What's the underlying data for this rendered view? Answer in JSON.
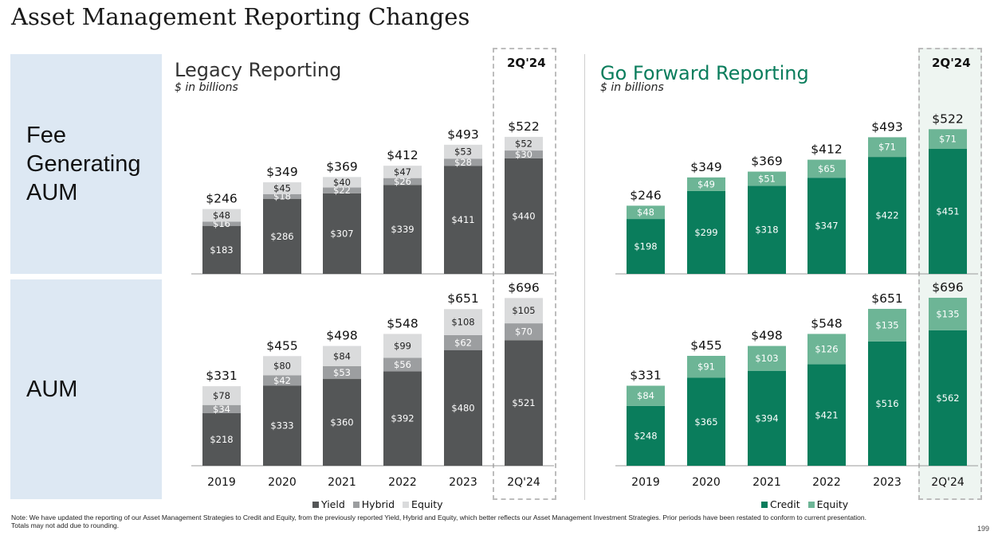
{
  "title": "Asset Management Reporting Changes",
  "row_labels": {
    "fee": "Fee\nGenerating\nAUM",
    "aum": "AUM"
  },
  "legacy": {
    "title": "Legacy Reporting",
    "subtitle": "$ in billions"
  },
  "forward": {
    "title": "Go Forward Reporting",
    "subtitle": "$ in billions"
  },
  "highlight_label": "2Q'24",
  "legend_legacy": [
    {
      "name": "Yield",
      "color": "#545657"
    },
    {
      "name": "Hybrid",
      "color": "#9c9ea0"
    },
    {
      "name": "Equity",
      "color": "#dadbdc"
    }
  ],
  "legend_forward": [
    {
      "name": "Credit",
      "color": "#0a7d5c"
    },
    {
      "name": "Equity",
      "color": "#6db596"
    }
  ],
  "note": "Note: We have updated the reporting of our Asset Management Strategies to Credit and Equity, from the previously reported Yield, Hybrid and Equity, which better reflects our Asset Management Investment Strategies. Prior periods have been restated to conform to current presentation.\nTotals may not add due to rounding.",
  "page_number": "199",
  "chart_data": [
    {
      "type": "bar",
      "stacked": true,
      "id": "legacy-fee",
      "title": "Legacy Reporting",
      "subtitle": "$ in billions",
      "row": "Fee Generating AUM",
      "categories": [
        "2019",
        "2020",
        "2021",
        "2022",
        "2023",
        "2Q'24"
      ],
      "series": [
        {
          "name": "Yield",
          "color": "#545657",
          "values": [
            183,
            286,
            307,
            339,
            411,
            440
          ],
          "labels": [
            "$183",
            "$286",
            "$307",
            "$339",
            "$411",
            "$440"
          ]
        },
        {
          "name": "Hybrid",
          "color": "#9c9ea0",
          "values": [
            16,
            18,
            22,
            26,
            28,
            30
          ],
          "labels": [
            "$16",
            "$18",
            "$22",
            "$26",
            "$28",
            "$30"
          ]
        },
        {
          "name": "Equity",
          "color": "#dadbdc",
          "values": [
            48,
            45,
            40,
            47,
            53,
            52
          ],
          "labels": [
            "$48",
            "$45",
            "$40",
            "$47",
            "$53",
            "$52"
          ]
        }
      ],
      "totals": [
        "$246",
        "$349",
        "$369",
        "$412",
        "$493",
        "$522"
      ],
      "show_xaxis": false
    },
    {
      "type": "bar",
      "stacked": true,
      "id": "legacy-aum",
      "title": "Legacy Reporting",
      "subtitle": "$ in billions",
      "row": "AUM",
      "categories": [
        "2019",
        "2020",
        "2021",
        "2022",
        "2023",
        "2Q'24"
      ],
      "series": [
        {
          "name": "Yield",
          "color": "#545657",
          "values": [
            218,
            333,
            360,
            392,
            480,
            521
          ],
          "labels": [
            "$218",
            "$333",
            "$360",
            "$392",
            "$480",
            "$521"
          ]
        },
        {
          "name": "Hybrid",
          "color": "#9c9ea0",
          "values": [
            34,
            42,
            53,
            56,
            62,
            70
          ],
          "labels": [
            "$34",
            "$42",
            "$53",
            "$56",
            "$62",
            "$70"
          ]
        },
        {
          "name": "Equity",
          "color": "#dadbdc",
          "values": [
            78,
            80,
            84,
            99,
            108,
            105
          ],
          "labels": [
            "$78",
            "$80",
            "$84",
            "$99",
            "$108",
            "$105"
          ]
        }
      ],
      "totals": [
        "$331",
        "$455",
        "$498",
        "$548",
        "$651",
        "$696"
      ],
      "show_xaxis": true
    },
    {
      "type": "bar",
      "stacked": true,
      "id": "forward-fee",
      "title": "Go Forward Reporting",
      "subtitle": "$ in billions",
      "row": "Fee Generating AUM",
      "categories": [
        "2019",
        "2020",
        "2021",
        "2022",
        "2023",
        "2Q'24"
      ],
      "series": [
        {
          "name": "Credit",
          "color": "#0a7d5c",
          "values": [
            198,
            299,
            318,
            347,
            422,
            451
          ],
          "labels": [
            "$198",
            "$299",
            "$318",
            "$347",
            "$422",
            "$451"
          ]
        },
        {
          "name": "Equity",
          "color": "#6db596",
          "values": [
            48,
            49,
            51,
            65,
            71,
            71
          ],
          "labels": [
            "$48",
            "$49",
            "$51",
            "$65",
            "$71",
            "$71"
          ]
        }
      ],
      "totals": [
        "$246",
        "$349",
        "$369",
        "$412",
        "$493",
        "$522"
      ],
      "show_xaxis": false
    },
    {
      "type": "bar",
      "stacked": true,
      "id": "forward-aum",
      "title": "Go Forward Reporting",
      "subtitle": "$ in billions",
      "row": "AUM",
      "categories": [
        "2019",
        "2020",
        "2021",
        "2022",
        "2023",
        "2Q'24"
      ],
      "series": [
        {
          "name": "Credit",
          "color": "#0a7d5c",
          "values": [
            248,
            365,
            394,
            421,
            516,
            562
          ],
          "labels": [
            "$248",
            "$365",
            "$394",
            "$421",
            "$516",
            "$562"
          ]
        },
        {
          "name": "Equity",
          "color": "#6db596",
          "values": [
            84,
            91,
            103,
            126,
            135,
            135
          ],
          "labels": [
            "$84",
            "$91",
            "$103",
            "$126",
            "$135",
            "$135"
          ]
        }
      ],
      "totals": [
        "$331",
        "$455",
        "$498",
        "$548",
        "$651",
        "$696"
      ],
      "show_xaxis": true
    }
  ]
}
